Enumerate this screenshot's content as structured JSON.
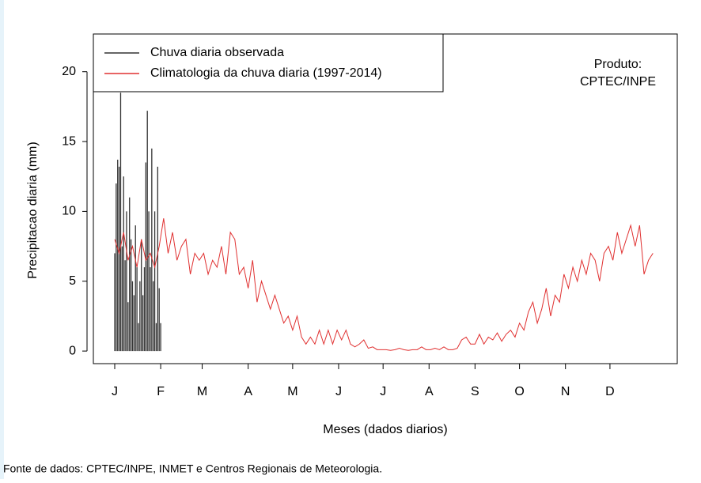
{
  "chart_data": {
    "type": "line",
    "y_label": "Precipitacao diaria (mm)",
    "x_label": "Meses (dados diarios)",
    "annotation": [
      "Produto:",
      "CPTEC/INPE"
    ],
    "footer": "Fonte de dados: CPTEC/INPE, INMET e Centros Regionais de Meteorologia.",
    "xlim": [
      -13.4,
      380.4
    ],
    "ylim": [
      -0.9,
      22.7
    ],
    "yticks": [
      0,
      5,
      10,
      15,
      20
    ],
    "xticks": [
      {
        "value": 1,
        "label": "J"
      },
      {
        "value": 32,
        "label": "F"
      },
      {
        "value": 60,
        "label": "M"
      },
      {
        "value": 91,
        "label": "A"
      },
      {
        "value": 121,
        "label": "M"
      },
      {
        "value": 152,
        "label": "J"
      },
      {
        "value": 182,
        "label": "J"
      },
      {
        "value": 213,
        "label": "A"
      },
      {
        "value": 244,
        "label": "S"
      },
      {
        "value": 274,
        "label": "O"
      },
      {
        "value": 305,
        "label": "N"
      },
      {
        "value": 335,
        "label": "D"
      }
    ],
    "series": [
      {
        "name": "Chuva diaria observada",
        "type": "bar",
        "color": "#333333",
        "x": [
          1,
          2,
          3,
          4,
          5,
          6,
          7,
          8,
          9,
          10,
          11,
          12,
          13,
          14,
          15,
          16,
          17,
          18,
          19,
          20,
          21,
          22,
          23,
          24,
          25,
          26,
          27,
          28,
          29,
          30,
          31,
          32
        ],
        "values": [
          7,
          12,
          13.7,
          13.2,
          18.5,
          7.5,
          12.5,
          6.5,
          10,
          3.5,
          11,
          8,
          5,
          4,
          9,
          6,
          2,
          5,
          8,
          4,
          6,
          13.5,
          17.2,
          10,
          6,
          14.5,
          5,
          10,
          2,
          13.2,
          4.5,
          2
        ]
      },
      {
        "name": "Climatologia da chuva diaria (1997-2014)",
        "type": "line",
        "color": "#e03030",
        "x": [
          1,
          4,
          7,
          10,
          13,
          16,
          19,
          22,
          25,
          28,
          31,
          34,
          37,
          40,
          43,
          46,
          49,
          52,
          55,
          58,
          61,
          64,
          67,
          70,
          73,
          76,
          79,
          82,
          85,
          88,
          91,
          94,
          97,
          100,
          103,
          106,
          109,
          112,
          115,
          118,
          121,
          124,
          127,
          130,
          133,
          136,
          139,
          142,
          145,
          148,
          151,
          154,
          157,
          160,
          163,
          166,
          169,
          172,
          175,
          178,
          181,
          184,
          187,
          190,
          193,
          196,
          199,
          202,
          205,
          208,
          211,
          214,
          217,
          220,
          223,
          226,
          229,
          232,
          235,
          238,
          241,
          244,
          247,
          250,
          253,
          256,
          259,
          262,
          265,
          268,
          271,
          274,
          277,
          280,
          283,
          286,
          289,
          292,
          295,
          298,
          301,
          304,
          307,
          310,
          313,
          316,
          319,
          322,
          325,
          328,
          331,
          334,
          337,
          340,
          343,
          346,
          349,
          352,
          355,
          358,
          361,
          364
        ],
        "values": [
          8,
          7,
          8.5,
          6.5,
          7.5,
          6,
          8,
          6.5,
          7,
          6,
          7.5,
          9.5,
          7,
          8.5,
          6.5,
          7.5,
          8,
          5.5,
          7,
          6.5,
          7,
          5.5,
          6.5,
          6,
          7.5,
          5.5,
          8.5,
          8,
          5.5,
          6,
          4.5,
          6.5,
          3.5,
          5,
          4,
          3,
          4,
          3,
          2,
          2.5,
          1.5,
          2.5,
          1,
          0.5,
          1,
          0.5,
          1.5,
          0.5,
          1.5,
          0.5,
          1.5,
          0.8,
          1.5,
          0.5,
          0.3,
          0.5,
          0.8,
          0.2,
          0.3,
          0.1,
          0.1,
          0.1,
          0.05,
          0.1,
          0.2,
          0.1,
          0.05,
          0.1,
          0.1,
          0.3,
          0.1,
          0.1,
          0.2,
          0.1,
          0.3,
          0.1,
          0.1,
          0.2,
          0.8,
          1,
          0.5,
          0.5,
          1.2,
          0.5,
          1,
          0.8,
          1.3,
          0.7,
          1.2,
          1.5,
          1,
          2,
          1.5,
          2.8,
          3.5,
          2,
          3,
          4.5,
          2.5,
          4,
          3.5,
          5.5,
          4.5,
          6,
          5,
          6.5,
          5.5,
          7,
          6.5,
          5,
          7,
          7.5,
          6.5,
          8.5,
          7,
          8,
          9,
          7.5,
          9,
          5.5,
          6.5,
          7
        ]
      }
    ]
  }
}
